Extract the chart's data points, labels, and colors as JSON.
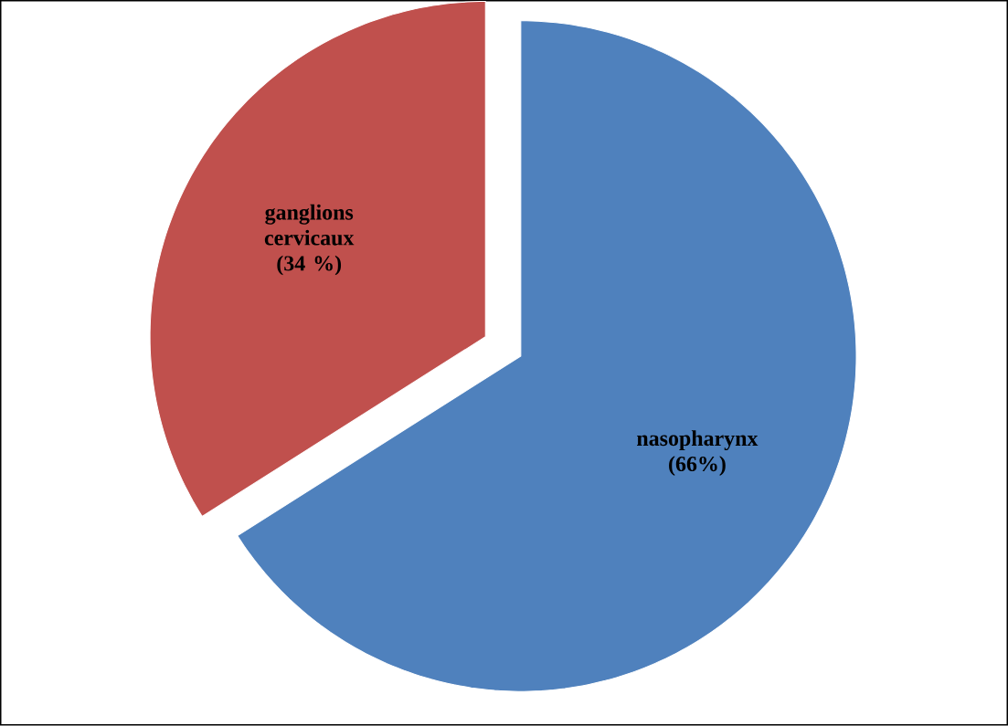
{
  "chart_data": {
    "type": "pie",
    "categories": [
      "nasopharynx",
      "ganglions cervicaux"
    ],
    "values": [
      66,
      34
    ],
    "colors": [
      "#4f81bd",
      "#c0504d"
    ],
    "value_labels": [
      "(66%)",
      "(34 %)"
    ]
  }
}
